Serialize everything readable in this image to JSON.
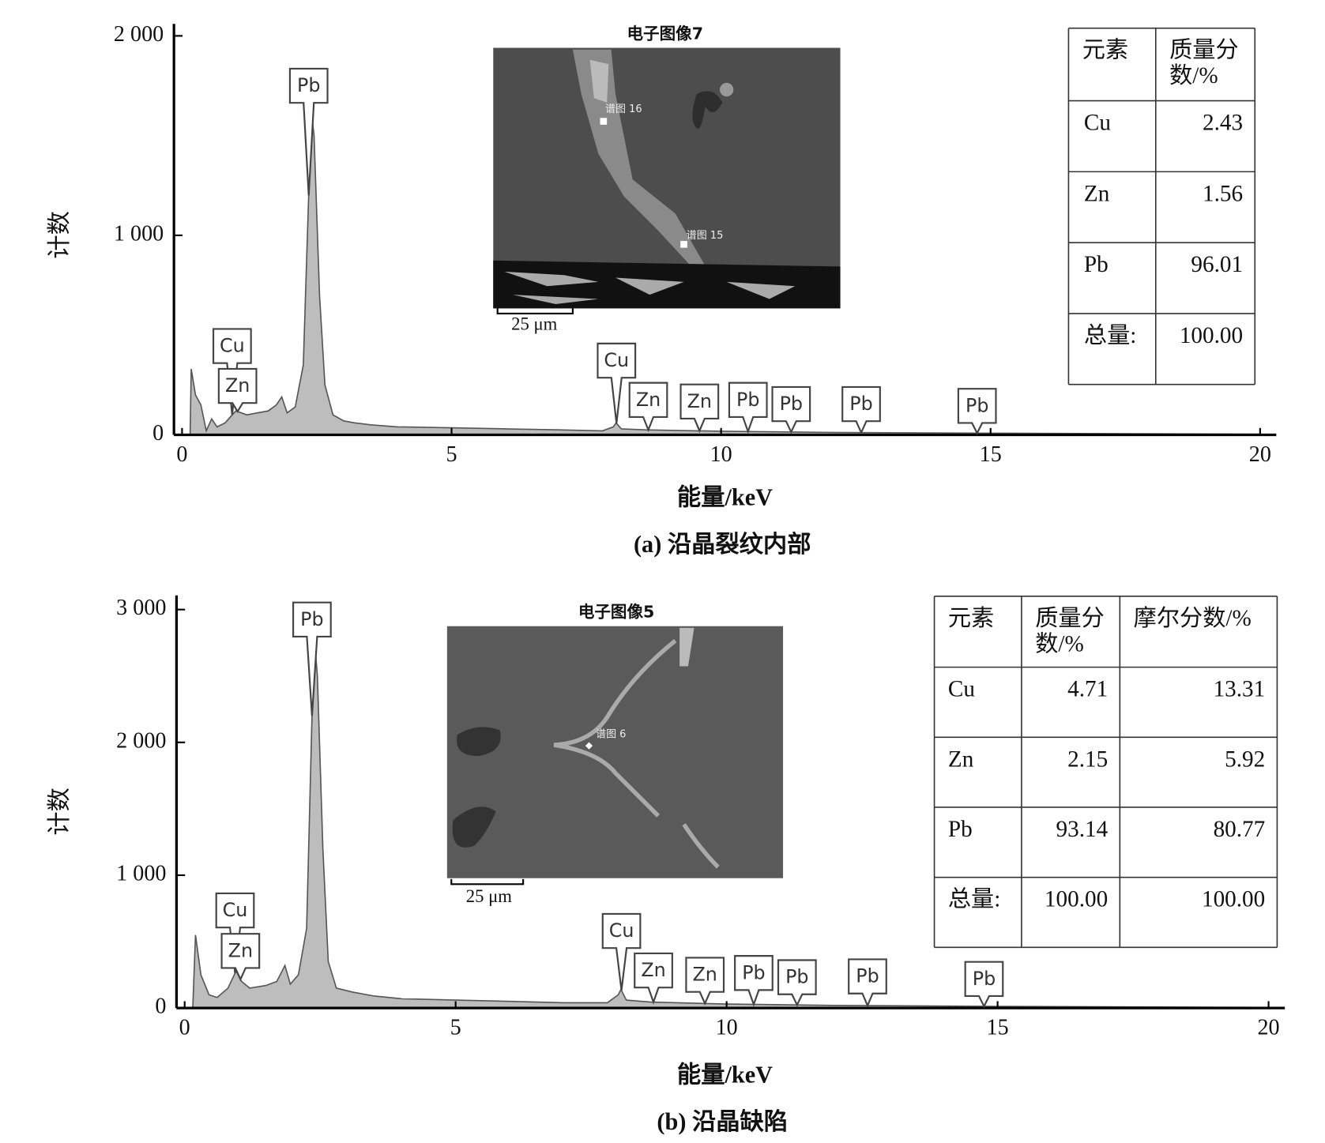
{
  "chart_data": [
    {
      "type": "area",
      "xlabel": "能量/keV",
      "ylabel": "计数",
      "caption": "(a) 沿晶裂纹内部",
      "xlim": [
        -0.15,
        20.3
      ],
      "ylim": [
        0,
        2050
      ],
      "xticks": [
        0,
        5,
        10,
        15,
        20
      ],
      "yticks": [
        0,
        {
          "value": 1000,
          "label": "1 000"
        },
        {
          "value": 2000,
          "label": "2 000"
        }
      ],
      "color": "#bdbdbd",
      "x": [
        0.15,
        0.17,
        0.25,
        0.35,
        0.45,
        0.55,
        0.65,
        0.8,
        0.93,
        1.0,
        1.2,
        1.4,
        1.6,
        1.75,
        1.85,
        1.95,
        2.1,
        2.25,
        2.35,
        2.4,
        2.45,
        2.55,
        2.65,
        2.8,
        3.0,
        3.2,
        3.5,
        4,
        5,
        6,
        7,
        7.8,
        8.0,
        8.05,
        8.15,
        8.6,
        10,
        12,
        15,
        18,
        20
      ],
      "values": [
        0,
        330,
        200,
        150,
        20,
        80,
        40,
        60,
        100,
        120,
        100,
        110,
        120,
        150,
        190,
        110,
        140,
        350,
        1200,
        1620,
        1500,
        700,
        250,
        100,
        70,
        60,
        50,
        40,
        35,
        30,
        25,
        20,
        40,
        60,
        30,
        25,
        18,
        12,
        8,
        5,
        3
      ],
      "annotations": [
        {
          "label": "Cu",
          "x": 0.93,
          "y": 445
        },
        {
          "label": "Zn",
          "x": 1.03,
          "y": 245
        },
        {
          "label": "Pb",
          "x": 2.35,
          "y": 1750
        },
        {
          "label": "Cu",
          "x": 8.06,
          "y": 372
        },
        {
          "label": "Zn",
          "x": 8.65,
          "y": 175
        },
        {
          "label": "Zn",
          "x": 9.6,
          "y": 167
        },
        {
          "label": "Pb",
          "x": 10.5,
          "y": 175
        },
        {
          "label": "Pb",
          "x": 11.3,
          "y": 154
        },
        {
          "label": "Pb",
          "x": 12.6,
          "y": 154
        },
        {
          "label": "Pb",
          "x": 14.75,
          "y": 145
        }
      ],
      "inset": {
        "title": "电子图像7",
        "scale": "25 μm",
        "spots": [
          "谱图 16",
          "谱图 15"
        ]
      },
      "table": {
        "header": [
          [
            "元素"
          ],
          [
            "质量分",
            "数/%"
          ]
        ],
        "rows": [
          [
            "Cu",
            "2.43"
          ],
          [
            "Zn",
            "1.56"
          ],
          [
            "Pb",
            "96.01"
          ],
          [
            "总量:",
            "100.00"
          ]
        ]
      }
    },
    {
      "type": "area",
      "xlabel": "能量/keV",
      "ylabel": "计数",
      "caption": "(b) 沿晶缺陷",
      "xlim": [
        -0.15,
        20.3
      ],
      "ylim": [
        0,
        3100
      ],
      "xticks": [
        0,
        5,
        10,
        15,
        20
      ],
      "yticks": [
        0,
        {
          "value": 1000,
          "label": "1 000"
        },
        {
          "value": 2000,
          "label": "2 000"
        },
        {
          "value": 3000,
          "label": "3 000"
        }
      ],
      "color": "#bdbdbd",
      "x": [
        0.15,
        0.2,
        0.3,
        0.45,
        0.6,
        0.8,
        0.95,
        1.05,
        1.2,
        1.5,
        1.7,
        1.85,
        1.95,
        2.1,
        2.25,
        2.35,
        2.4,
        2.45,
        2.55,
        2.65,
        2.8,
        3.1,
        3.5,
        4,
        5,
        6,
        7,
        7.8,
        8.0,
        8.05,
        8.15,
        8.6,
        10,
        12,
        15,
        18,
        20
      ],
      "values": [
        0,
        550,
        250,
        100,
        80,
        150,
        280,
        200,
        150,
        170,
        200,
        320,
        180,
        250,
        600,
        2200,
        2750,
        2500,
        1200,
        350,
        150,
        120,
        90,
        70,
        60,
        50,
        40,
        40,
        100,
        140,
        60,
        45,
        30,
        20,
        12,
        8,
        5
      ],
      "annotations": [
        {
          "label": "Cu",
          "x": 0.93,
          "y": 735
        },
        {
          "label": "Zn",
          "x": 1.03,
          "y": 430
        },
        {
          "label": "Pb",
          "x": 2.35,
          "y": 2925
        },
        {
          "label": "Cu",
          "x": 8.06,
          "y": 580
        },
        {
          "label": "Zn",
          "x": 8.65,
          "y": 283
        },
        {
          "label": "Zn",
          "x": 9.6,
          "y": 250
        },
        {
          "label": "Pb",
          "x": 10.5,
          "y": 264
        },
        {
          "label": "Pb",
          "x": 11.3,
          "y": 232
        },
        {
          "label": "Pb",
          "x": 12.6,
          "y": 238
        },
        {
          "label": "Pb",
          "x": 14.75,
          "y": 219
        }
      ],
      "inset": {
        "title": "电子图像5",
        "scale": "25 μm",
        "spots": [
          "谱图 6"
        ]
      },
      "table": {
        "header": [
          [
            "元素"
          ],
          [
            "质量分",
            "数/%"
          ],
          [
            "摩尔分数/%"
          ]
        ],
        "rows": [
          [
            "Cu",
            "4.71",
            "13.31"
          ],
          [
            "Zn",
            "2.15",
            "5.92"
          ],
          [
            "Pb",
            "93.14",
            "80.77"
          ],
          [
            "总量:",
            "100.00",
            "100.00"
          ]
        ]
      }
    }
  ]
}
